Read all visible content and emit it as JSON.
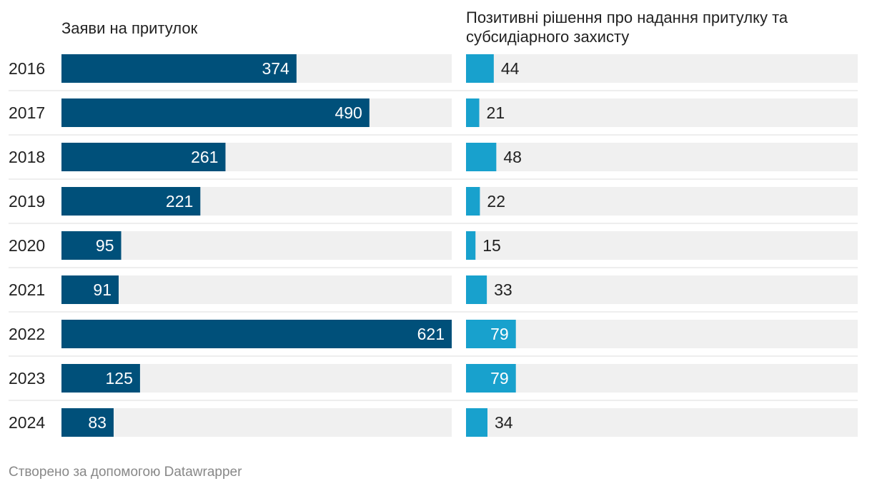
{
  "chart_data": {
    "type": "bar",
    "orientation": "horizontal",
    "categories": [
      "2016",
      "2017",
      "2018",
      "2019",
      "2020",
      "2021",
      "2022",
      "2023",
      "2024"
    ],
    "series": [
      {
        "name": "Заяви на притулок",
        "values": [
          374,
          490,
          261,
          221,
          95,
          91,
          621,
          125,
          83
        ],
        "color": "#00507a",
        "xlim": [
          0,
          621
        ]
      },
      {
        "name": "Позитивні рішення про надання притулку та субсидіарного захисту",
        "values": [
          44,
          21,
          48,
          22,
          15,
          33,
          79,
          79,
          34
        ],
        "color": "#18a1cd",
        "xlim": [
          0,
          621
        ]
      }
    ],
    "track_color": "#f0f0f0",
    "divider_color": "#dddddd"
  },
  "footer": {
    "credit": "Створено за допомогою Datawrapper"
  }
}
